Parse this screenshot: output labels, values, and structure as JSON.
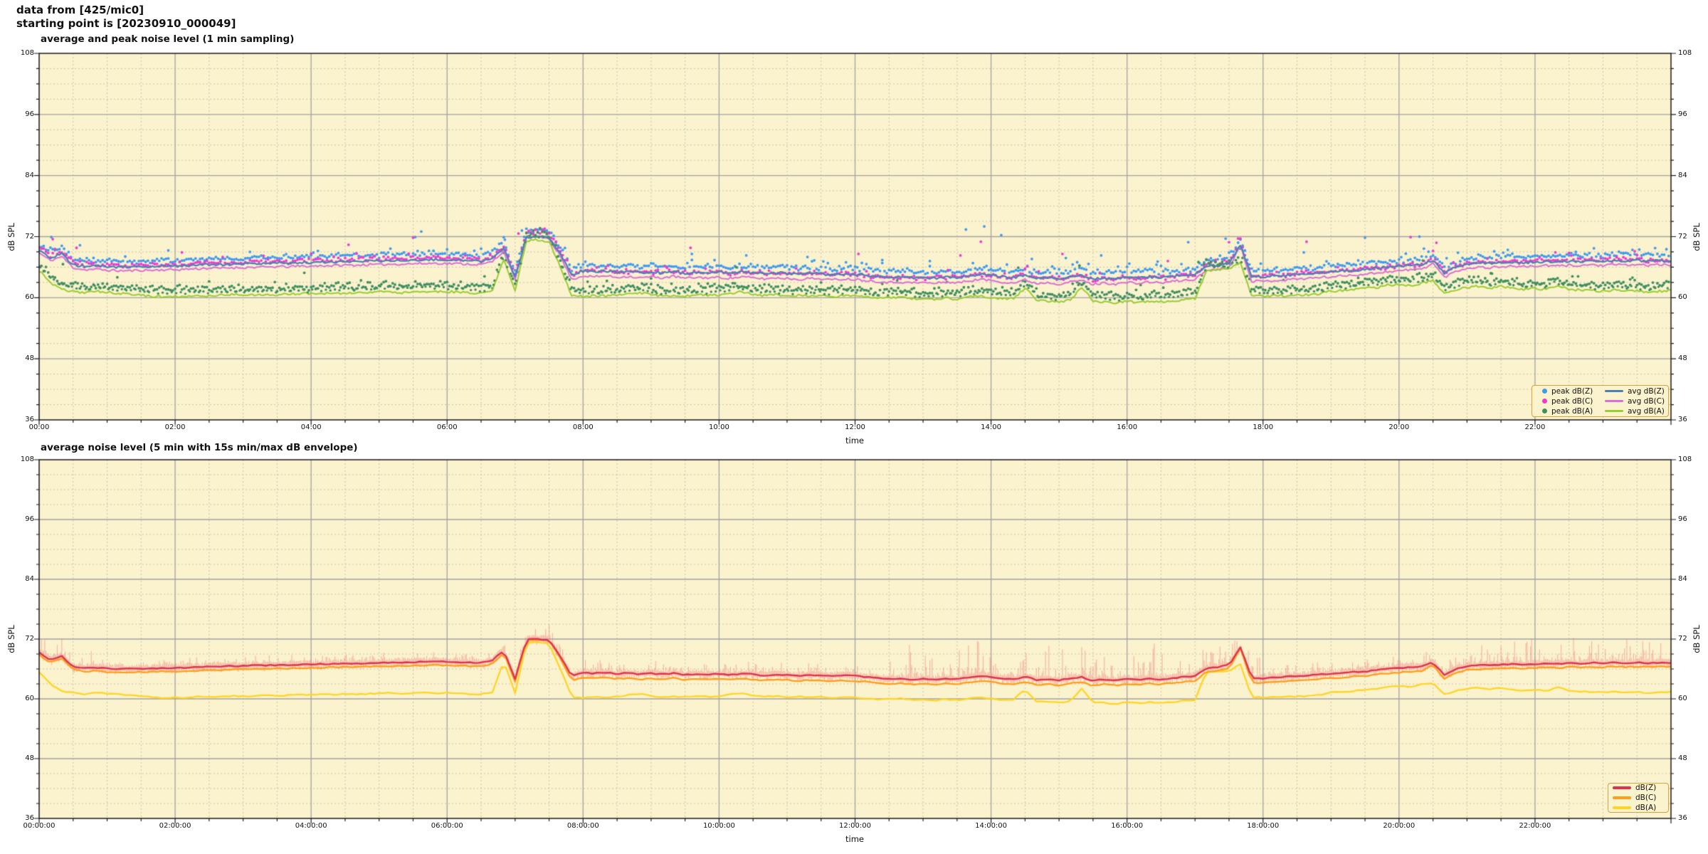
{
  "header": {
    "line1": "data from [425/mic0]",
    "line2": "starting point is [20230910_000049]"
  },
  "colors": {
    "figure_bg": "#ffffff",
    "plot_bg": "#FBF2CE",
    "grid_major": "#A3A3A3",
    "grid_minor": "#C9C4AD",
    "axis_border": "#1a1a1a",
    "envelope": "rgba(239,118,118,0.5)"
  },
  "top_chart": {
    "title": "average and peak noise level (1 min sampling)",
    "xlabel": "time",
    "ylabel_left": "dB SPL",
    "ylabel_right": "dB SPL",
    "xticks": [
      "00:00",
      "02:00",
      "04:00",
      "06:00",
      "08:00",
      "10:00",
      "12:00",
      "14:00",
      "16:00",
      "18:00",
      "20:00",
      "22:00"
    ],
    "yticks": [
      "36",
      "48",
      "60",
      "72",
      "84",
      "96",
      "108"
    ],
    "legend": [
      {
        "label": "peak dB(Z)",
        "marker": "dot",
        "color": "#3E9BF0"
      },
      {
        "label": "avg dB(Z)",
        "marker": "line",
        "color": "#4682B4"
      },
      {
        "label": "peak dB(C)",
        "marker": "dot",
        "color": "#EE3BCF"
      },
      {
        "label": "avg dB(C)",
        "marker": "line",
        "color": "#DA70D6"
      },
      {
        "label": "peak dB(A)",
        "marker": "dot",
        "color": "#3F8F5F"
      },
      {
        "label": "avg dB(A)",
        "marker": "line",
        "color": "#9ACD32"
      }
    ]
  },
  "bottom_chart": {
    "title": "average noise level (5 min with 15s min/max dB envelope)",
    "xlabel": "time",
    "ylabel_left": "dB SPL",
    "ylabel_right": "dB SPL",
    "xticks": [
      "00:00:00",
      "02:00:00",
      "04:00:00",
      "06:00:00",
      "08:00:00",
      "10:00:00",
      "12:00:00",
      "14:00:00",
      "16:00:00",
      "18:00:00",
      "20:00:00",
      "22:00:00"
    ],
    "yticks": [
      "36",
      "48",
      "60",
      "72",
      "84",
      "96",
      "108"
    ],
    "legend": [
      {
        "label": "dB(Z)",
        "marker": "line",
        "color": "#DC3350"
      },
      {
        "label": "dB(C)",
        "marker": "line",
        "color": "#FF9E1B"
      },
      {
        "label": "dB(A)",
        "marker": "line",
        "color": "#FFD51E"
      }
    ]
  },
  "chart_data": [
    {
      "type": "line+scatter",
      "title": "average and peak noise level (1 min sampling)",
      "xlabel": "time",
      "ylabel": "dB SPL",
      "x_unit": "hours",
      "x_range": [
        0,
        24
      ],
      "x_step_minutes": 10,
      "ylim": [
        36,
        108
      ],
      "ytick_step": 12,
      "grid": true,
      "legend_position": "lower right",
      "series": [
        {
          "name": "avg dB(Z)",
          "type": "line",
          "color": "#4682B4",
          "values": [
            69.3,
            67.8,
            68.6,
            66.4,
            66.2,
            66.3,
            66.1,
            66.0,
            66.0,
            66.1,
            66.1,
            66.2,
            66.2,
            66.3,
            66.4,
            66.5,
            66.5,
            66.6,
            66.6,
            66.7,
            66.7,
            66.8,
            66.8,
            66.9,
            66.9,
            67.0,
            67.0,
            67.1,
            67.1,
            67.2,
            67.2,
            67.3,
            67.3,
            67.4,
            67.4,
            67.5,
            67.4,
            67.4,
            67.3,
            67.2,
            67.8,
            69.8,
            64.0,
            71.9,
            72.0,
            71.8,
            68.5,
            64.6,
            65.3,
            65.1,
            65.3,
            65.0,
            65.2,
            64.9,
            65.1,
            64.9,
            65.2,
            64.8,
            65.0,
            64.9,
            65.0,
            64.8,
            65.1,
            64.9,
            64.7,
            64.9,
            64.8,
            64.6,
            64.8,
            64.7,
            64.5,
            64.7,
            64.6,
            64.4,
            64.2,
            64.0,
            64.1,
            63.9,
            64.0,
            63.8,
            64.1,
            63.9,
            64.3,
            64.6,
            64.4,
            64.1,
            63.9,
            64.5,
            63.8,
            64.0,
            63.7,
            64.1,
            64.4,
            63.6,
            63.9,
            63.7,
            64.0,
            63.8,
            64.1,
            63.9,
            64.2,
            64.4,
            64.6,
            66.2,
            66.4,
            66.8,
            70.4,
            64.2,
            64.1,
            64.3,
            64.4,
            64.6,
            64.7,
            64.9,
            65.0,
            65.2,
            65.4,
            65.5,
            65.8,
            66.0,
            66.2,
            66.4,
            66.5,
            67.3,
            64.8,
            66.0,
            66.6,
            66.8,
            66.7,
            66.9,
            67.0,
            66.9,
            67.0,
            67.1,
            67.0,
            67.2,
            67.1,
            67.3,
            67.1,
            67.3,
            67.2,
            67.3,
            67.2,
            67.3,
            67.2
          ]
        },
        {
          "name": "avg dB(C)",
          "type": "line",
          "color": "#DA70D6",
          "values": [
            68.8,
            67.3,
            68.1,
            65.9,
            65.5,
            65.6,
            65.4,
            65.3,
            65.3,
            65.4,
            65.4,
            65.5,
            65.5,
            65.6,
            65.7,
            65.8,
            65.8,
            65.9,
            65.9,
            66.0,
            66.0,
            66.1,
            66.1,
            66.2,
            66.2,
            66.3,
            66.3,
            66.4,
            66.4,
            66.5,
            66.5,
            66.6,
            66.6,
            66.7,
            66.7,
            66.8,
            66.7,
            66.7,
            66.6,
            66.5,
            67.1,
            69.2,
            63.5,
            71.8,
            71.9,
            71.7,
            68.1,
            63.6,
            64.3,
            64.1,
            64.3,
            64.0,
            64.2,
            63.9,
            64.1,
            63.9,
            64.2,
            63.8,
            64.0,
            63.9,
            64.0,
            63.8,
            64.1,
            63.9,
            63.7,
            63.9,
            63.8,
            63.6,
            63.8,
            63.7,
            63.5,
            63.7,
            63.6,
            63.4,
            63.2,
            63.0,
            63.1,
            62.9,
            63.0,
            62.8,
            63.1,
            62.9,
            63.3,
            63.6,
            63.4,
            63.1,
            62.9,
            63.5,
            62.8,
            63.0,
            62.7,
            63.1,
            63.4,
            62.6,
            62.9,
            62.7,
            63.0,
            62.8,
            63.1,
            62.9,
            63.2,
            63.4,
            63.6,
            65.4,
            65.6,
            66.0,
            70.2,
            63.3,
            63.2,
            63.4,
            63.5,
            63.7,
            63.8,
            64.0,
            64.1,
            64.3,
            64.5,
            64.6,
            64.9,
            65.1,
            65.3,
            65.5,
            65.6,
            66.8,
            64.0,
            65.2,
            65.8,
            66.0,
            65.9,
            66.1,
            66.2,
            66.1,
            66.2,
            66.3,
            66.2,
            66.4,
            66.3,
            66.5,
            66.3,
            66.5,
            66.4,
            66.5,
            66.4,
            66.5,
            66.4
          ]
        },
        {
          "name": "avg dB(A)",
          "type": "line",
          "color": "#9ACD32",
          "values": [
            65.3,
            63.0,
            61.6,
            61.2,
            60.9,
            61.3,
            61.1,
            60.9,
            60.7,
            60.5,
            60.3,
            60.2,
            60.3,
            60.2,
            60.4,
            60.3,
            60.5,
            60.6,
            60.6,
            60.5,
            60.7,
            60.6,
            60.7,
            60.8,
            60.8,
            60.9,
            60.8,
            61.0,
            60.9,
            61.0,
            61.1,
            61.2,
            61.0,
            61.2,
            61.3,
            61.1,
            61.2,
            61.1,
            61.0,
            60.9,
            61.4,
            67.6,
            61.2,
            71.2,
            71.4,
            71.0,
            66.0,
            60.4,
            60.2,
            60.4,
            60.3,
            60.5,
            60.8,
            61.0,
            60.6,
            60.4,
            60.5,
            60.3,
            60.6,
            60.4,
            60.5,
            60.9,
            61.2,
            60.7,
            60.4,
            60.6,
            60.4,
            60.5,
            60.3,
            60.4,
            60.2,
            60.4,
            60.3,
            60.1,
            59.9,
            60.0,
            60.1,
            59.8,
            59.9,
            59.6,
            60.0,
            59.7,
            60.1,
            60.3,
            60.0,
            59.8,
            59.9,
            61.9,
            59.6,
            59.4,
            59.2,
            59.5,
            62.0,
            59.4,
            59.2,
            59.0,
            59.3,
            59.1,
            59.4,
            59.2,
            59.4,
            59.6,
            59.8,
            65.4,
            65.5,
            65.6,
            67.0,
            60.3,
            60.3,
            60.4,
            60.4,
            60.5,
            60.6,
            60.8,
            61.3,
            61.4,
            61.6,
            61.8,
            62.0,
            62.5,
            62.6,
            62.4,
            62.9,
            63.3,
            60.9,
            61.6,
            62.0,
            62.3,
            61.9,
            62.2,
            61.8,
            61.6,
            61.9,
            61.6,
            62.3,
            61.7,
            61.5,
            61.4,
            61.3,
            61.5,
            61.2,
            61.4,
            61.1,
            61.3,
            61.4
          ]
        },
        {
          "name": "peak dB(Z)",
          "type": "scatter",
          "color": "#3E9BF0",
          "base": "avg dB(Z)",
          "offset": 0.55,
          "spread": 1.25,
          "outlier_rate": 0.08,
          "outlier_extra": 1.6,
          "outliers": [
            [
              0.18,
              71.9
            ],
            [
              0.6,
              70.3
            ],
            [
              1.9,
              69.3
            ],
            [
              3.1,
              69.0
            ],
            [
              4.1,
              69.2
            ],
            [
              5.53,
              71.9
            ],
            [
              5.62,
              73.0
            ],
            [
              6.85,
              71.4
            ],
            [
              7.1,
              73.2
            ],
            [
              9.6,
              68.6
            ],
            [
              10.4,
              68.3
            ],
            [
              11.3,
              68.0
            ],
            [
              12.4,
              67.4
            ],
            [
              13.1,
              67.2
            ],
            [
              13.63,
              73.4
            ],
            [
              13.9,
              74.0
            ],
            [
              14.15,
              72.3
            ],
            [
              14.6,
              67.6
            ],
            [
              15.1,
              67.8
            ],
            [
              15.62,
              68.3
            ],
            [
              16.45,
              67.1
            ],
            [
              16.9,
              70.9
            ],
            [
              17.45,
              71.6
            ],
            [
              18.6,
              68.9
            ],
            [
              19.5,
              71.8
            ],
            [
              20.3,
              72.0
            ],
            [
              21.6,
              69.4
            ],
            [
              22.6,
              69.0
            ],
            [
              23.3,
              68.7
            ]
          ]
        },
        {
          "name": "peak dB(C)",
          "type": "scatter",
          "color": "#EE3BCF",
          "base": "avg dB(C)",
          "offset": 0.45,
          "spread": 1.15,
          "outlier_rate": 0.08,
          "outlier_extra": 1.4,
          "outliers": [
            [
              0.2,
              71.5
            ],
            [
              0.55,
              69.8
            ],
            [
              2.1,
              68.9
            ],
            [
              4.55,
              70.4
            ],
            [
              5.5,
              71.8
            ],
            [
              7.05,
              72.6
            ],
            [
              9.58,
              69.8
            ],
            [
              12.05,
              68.6
            ],
            [
              13.55,
              68.3
            ],
            [
              13.85,
              71.0
            ],
            [
              15.05,
              68.6
            ],
            [
              16.6,
              67.2
            ],
            [
              17.5,
              70.9
            ],
            [
              18.64,
              71.0
            ],
            [
              20.17,
              71.9
            ],
            [
              20.55,
              70.8
            ],
            [
              22.3,
              68.9
            ],
            [
              23.5,
              68.4
            ]
          ]
        },
        {
          "name": "peak dB(A)",
          "type": "scatter",
          "color": "#3F8F5F",
          "base": "avg dB(A)",
          "offset": 0.4,
          "spread": 1.9,
          "outlier_rate": 0.1,
          "outlier_extra": 1.2,
          "outliers": [
            [
              0.35,
              66.6
            ],
            [
              1.15,
              64.0
            ],
            [
              2.5,
              63.2
            ],
            [
              3.9,
              64.9
            ],
            [
              6.55,
              64.2
            ],
            [
              8.35,
              63.3
            ],
            [
              9.0,
              63.8
            ],
            [
              10.25,
              66.0
            ],
            [
              11.5,
              63.0
            ],
            [
              12.62,
              63.4
            ],
            [
              13.35,
              63.1
            ],
            [
              14.4,
              65.9
            ],
            [
              15.3,
              66.3
            ],
            [
              16.2,
              62.5
            ],
            [
              17.05,
              67.0
            ],
            [
              18.3,
              63.5
            ],
            [
              19.4,
              63.9
            ],
            [
              20.35,
              67.3
            ],
            [
              21.35,
              64.8
            ],
            [
              22.55,
              64.2
            ],
            [
              23.4,
              63.6
            ]
          ]
        }
      ],
      "noise": {
        "line_seed": 11,
        "peak_seed": 23,
        "line_jitter": 0.45
      }
    },
    {
      "type": "line",
      "title": "average noise level (5 min with 15s min/max dB envelope)",
      "xlabel": "time",
      "ylabel": "dB SPL",
      "x_unit": "hours",
      "x_range": [
        0,
        24
      ],
      "ylim": [
        36,
        108
      ],
      "ytick_step": 12,
      "grid": true,
      "legend_position": "lower right",
      "series": [
        {
          "name": "dB(A)",
          "color": "#FFD51E",
          "values_ref": "avg dB(A)"
        },
        {
          "name": "dB(C)",
          "color": "#FF9E1B",
          "values_ref": "avg dB(C)"
        },
        {
          "name": "dB(Z)",
          "color": "#DC3350",
          "values_ref": "avg dB(Z)"
        }
      ],
      "envelope": {
        "around": "dB(Z)",
        "color": "rgba(239,118,118,0.5)",
        "base_up": 0.35,
        "base_down": 0.3,
        "spike_regions": [
          [
            0,
            0.8,
            2.2
          ],
          [
            0.8,
            6.5,
            0.9
          ],
          [
            6.5,
            8.0,
            2.0
          ],
          [
            8.0,
            12.5,
            1.3
          ],
          [
            12.5,
            16.6,
            4.8
          ],
          [
            16.6,
            18.0,
            2.4
          ],
          [
            18.0,
            21.0,
            1.4
          ],
          [
            21.0,
            24.0,
            3.2
          ]
        ]
      },
      "noise": {
        "line_seed": 31,
        "envelope_seed": 37,
        "line_jitter": 0.22
      }
    }
  ]
}
